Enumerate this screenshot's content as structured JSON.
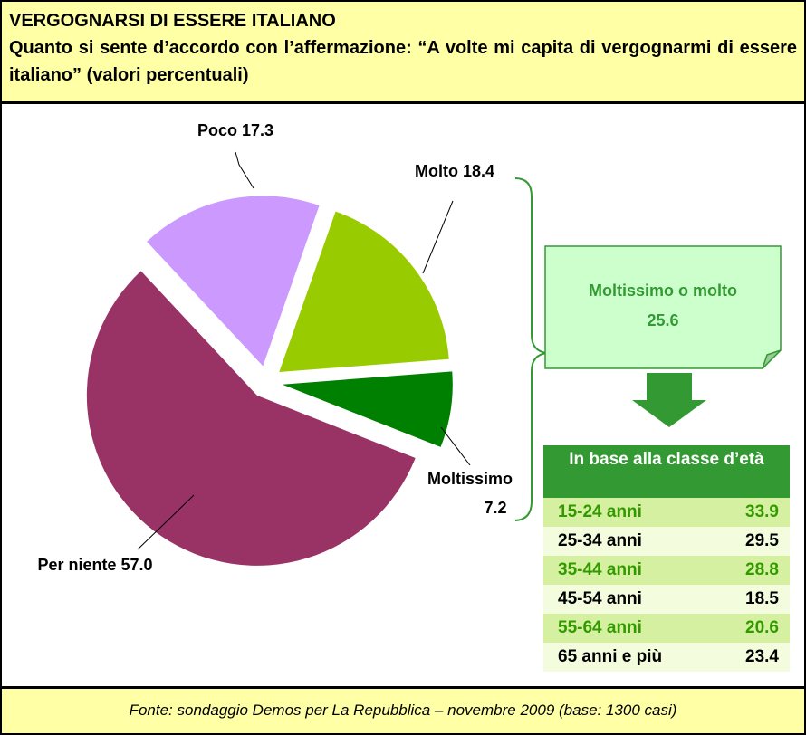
{
  "title": "VERGOGNARSI DI ESSERE ITALIANO",
  "subtitle": "Quanto si sente d’accordo con l’affermazione: “A volte mi capita di vergognarmi di essere italiano” (valori percentuali)",
  "chart_data": {
    "type": "pie",
    "categories": [
      "Poco",
      "Molto",
      "Moltissimo",
      "Per niente"
    ],
    "values": [
      17.3,
      18.4,
      7.2,
      57.0
    ],
    "value_labels": [
      "17.3",
      "18.4",
      "7.2",
      "57.0"
    ],
    "colors": [
      "#cc99ff",
      "#99cc00",
      "#008000",
      "#993366"
    ]
  },
  "callout": {
    "label": "Moltissimo o molto",
    "value": 25.6
  },
  "table": {
    "title": "In base alla classe d’età",
    "rows": [
      {
        "label": "15-24 anni",
        "value": 33.9
      },
      {
        "label": "25-34 anni",
        "value": 29.5
      },
      {
        "label": "35-44 anni",
        "value": 28.8
      },
      {
        "label": "45-54 anni",
        "value": 18.5
      },
      {
        "label": "55-64 anni",
        "value": 20.6
      },
      {
        "label": "65 anni e più",
        "value": 23.4
      }
    ]
  },
  "source": "Fonte: sondaggio Demos per La Repubblica – novembre 2009 (base: 1300 casi)"
}
